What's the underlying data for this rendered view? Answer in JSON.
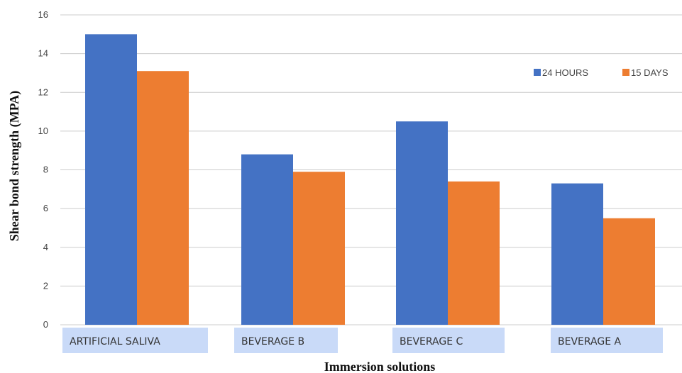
{
  "chart_data": {
    "type": "bar",
    "title": "",
    "xlabel": "Immersion solutions",
    "ylabel": "Shear bond strength (MPA)",
    "categories": [
      "ARTIFICIAL SALIVA",
      "BEVERAGE B",
      "BEVERAGE C",
      "BEVERAGE A"
    ],
    "series": [
      {
        "name": "24 HOURS",
        "color": "#4472C4",
        "values": [
          15.0,
          8.8,
          10.5,
          7.3
        ]
      },
      {
        "name": "15 DAYS",
        "color": "#ED7D31",
        "values": [
          13.1,
          7.9,
          7.4,
          5.5
        ]
      }
    ],
    "ylim": [
      0,
      16
    ],
    "yticks": [
      0,
      2,
      4,
      6,
      8,
      10,
      12,
      14,
      16
    ],
    "grid": true,
    "legend_position": "top-right",
    "category_label_background": "#C9DAF8"
  }
}
